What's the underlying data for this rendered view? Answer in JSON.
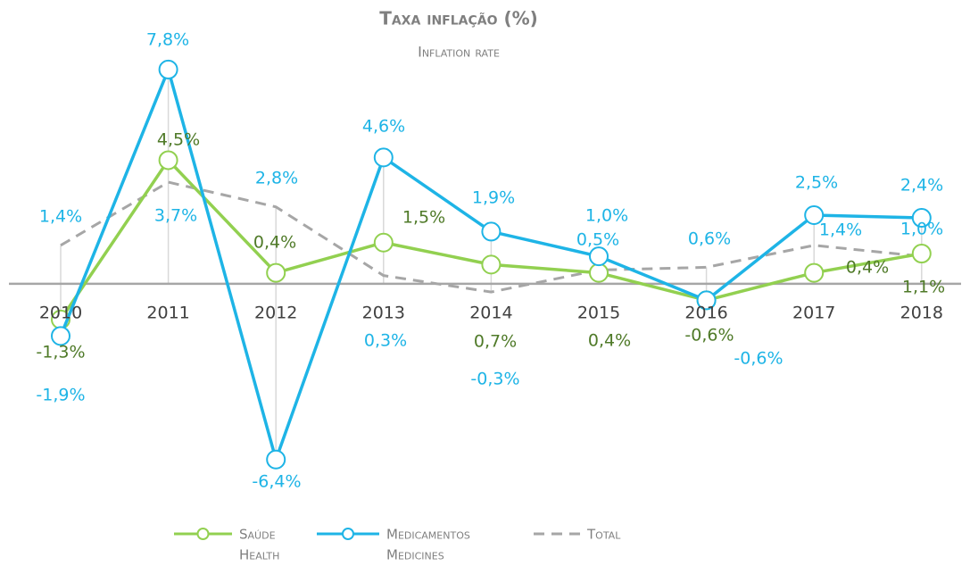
{
  "chart_data": {
    "type": "line",
    "title": "Taxa inflação (%)",
    "subtitle": "Inflation rate",
    "categories": [
      "2010",
      "2011",
      "2012",
      "2013",
      "2014",
      "2015",
      "2016",
      "2017",
      "2018"
    ],
    "ylim": [
      -8,
      9
    ],
    "series": [
      {
        "name": "Saúde",
        "name_en": "Health",
        "color": "#92d050",
        "label_color": "#4f7a28",
        "style": "solid",
        "markers": true,
        "values": [
          -1.3,
          4.5,
          0.4,
          1.5,
          0.7,
          0.4,
          -0.6,
          0.4,
          1.1
        ],
        "value_labels": [
          "-1,3%",
          "4,5%",
          "0,4%",
          "1,5%",
          "0,7%",
          "0,4%",
          "-0,6%",
          "0,4%",
          "1,1%"
        ]
      },
      {
        "name": "Medicamentos",
        "name_en": "Medicines",
        "color": "#1eb4e6",
        "label_color": "#1eb4e6",
        "style": "solid",
        "markers": true,
        "values": [
          -1.9,
          7.8,
          -6.4,
          4.6,
          1.9,
          1.0,
          -0.6,
          2.5,
          2.4
        ],
        "value_labels": [
          "-1,9%",
          "7,8%",
          "-6,4%",
          "4,6%",
          "1,9%",
          "1,0%",
          "-0,6%",
          "2,5%",
          "2,4%"
        ]
      },
      {
        "name": "Total",
        "color": "#a6a6a6",
        "label_color": "#1eb4e6",
        "style": "dashed",
        "markers": false,
        "values": [
          1.4,
          3.7,
          2.8,
          0.3,
          -0.3,
          0.5,
          0.6,
          1.4,
          1.0
        ],
        "value_labels": [
          "1,4%",
          "3,7%",
          "2,8%",
          "0,3%",
          "-0,3%",
          "0,5%",
          "0,6%",
          "1,4%",
          "1,0%"
        ]
      }
    ]
  }
}
